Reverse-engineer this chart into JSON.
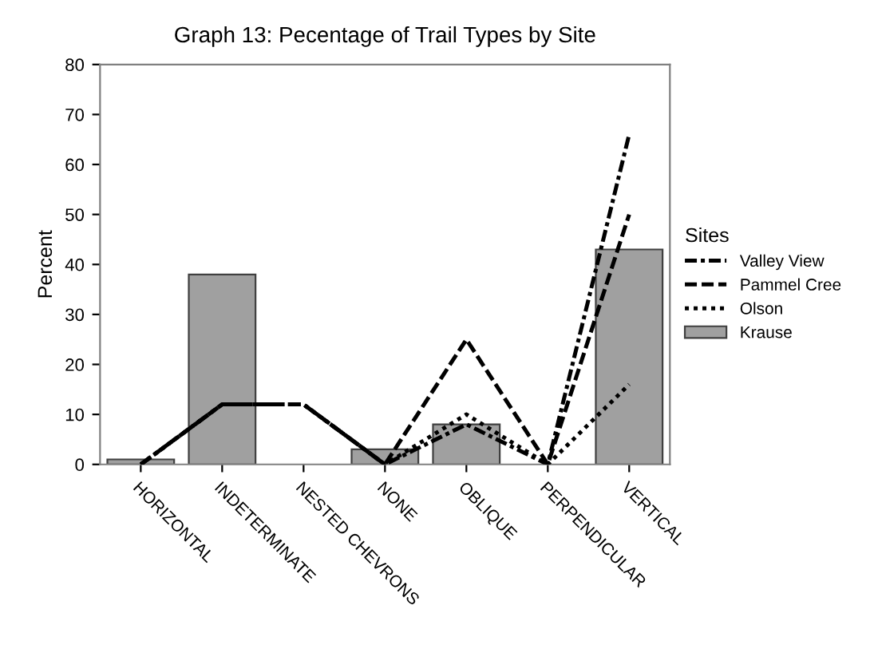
{
  "chart_data": {
    "type": "bar",
    "title": "Graph 13: Pecentage of Trail Types by Site",
    "ylabel": "Percent",
    "legend_title": "Sites",
    "categories": [
      "HORIZONTAL",
      "INDETERMINATE",
      "NESTED CHEVRONS",
      "NONE",
      "OBLIQUE",
      "PERPENDICULAR",
      "VERTICAL"
    ],
    "series": [
      {
        "name": "Valley View",
        "type": "line",
        "line_style": "dashdot",
        "color": "#000000",
        "values": [
          0,
          12,
          12,
          0,
          8,
          0,
          66
        ]
      },
      {
        "name": "Pammel Cree",
        "type": "line",
        "line_style": "dashed",
        "color": "#000000",
        "values": [
          0,
          12,
          12,
          0,
          25,
          0,
          50
        ]
      },
      {
        "name": "Olson",
        "type": "line",
        "line_style": "dotted",
        "color": "#000000",
        "values": [
          0,
          12,
          12,
          0,
          10,
          0,
          16
        ]
      },
      {
        "name": "Krause",
        "color": "#a0a0a0",
        "values": [
          1,
          38,
          0,
          3,
          8,
          0,
          43
        ]
      }
    ],
    "ylim": [
      0,
      80
    ],
    "yticks": [
      0,
      10,
      20,
      30,
      40,
      50,
      60,
      70,
      80
    ],
    "grid": false,
    "legend": "right"
  }
}
